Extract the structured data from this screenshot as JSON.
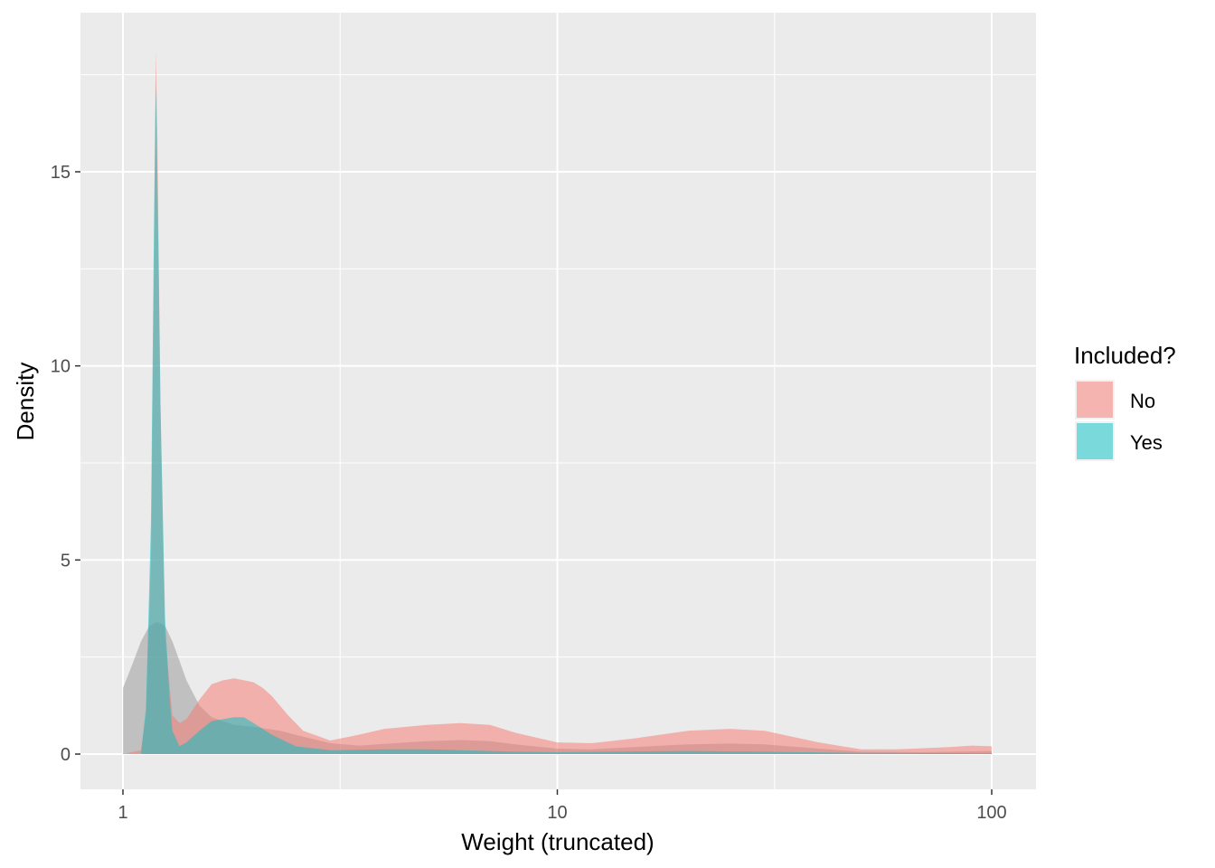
{
  "chart_data": {
    "type": "area",
    "xlabel": "Weight (truncated)",
    "ylabel": "Density",
    "x_scale": "log10",
    "xlim": [
      1,
      100
    ],
    "ylim": [
      -0.9,
      19
    ],
    "x_ticks": [
      1,
      10,
      100
    ],
    "x_tick_labels": [
      "1",
      "10",
      "100"
    ],
    "y_ticks": [
      0,
      5,
      10,
      15
    ],
    "y_tick_labels": [
      "0",
      "5",
      "10",
      "15"
    ],
    "grid": true,
    "legend": {
      "title": "Included?",
      "position": "right"
    },
    "series": [
      {
        "name": "No",
        "color": "#F8766D",
        "opacity": 0.5,
        "points": [
          [
            1.0,
            0
          ],
          [
            1.1,
            0.1
          ],
          [
            1.13,
            1.0
          ],
          [
            1.16,
            5
          ],
          [
            1.18,
            13
          ],
          [
            1.19,
            18.1
          ],
          [
            1.2,
            16
          ],
          [
            1.22,
            9
          ],
          [
            1.25,
            3
          ],
          [
            1.3,
            1.0
          ],
          [
            1.35,
            0.8
          ],
          [
            1.4,
            0.9
          ],
          [
            1.5,
            1.4
          ],
          [
            1.6,
            1.8
          ],
          [
            1.7,
            1.9
          ],
          [
            1.8,
            1.95
          ],
          [
            1.9,
            1.9
          ],
          [
            2.0,
            1.85
          ],
          [
            2.1,
            1.7
          ],
          [
            2.2,
            1.5
          ],
          [
            2.4,
            1.0
          ],
          [
            2.6,
            0.6
          ],
          [
            3.0,
            0.35
          ],
          [
            3.5,
            0.5
          ],
          [
            4.0,
            0.65
          ],
          [
            5.0,
            0.75
          ],
          [
            6.0,
            0.8
          ],
          [
            7.0,
            0.75
          ],
          [
            8.0,
            0.55
          ],
          [
            10.0,
            0.3
          ],
          [
            12.0,
            0.28
          ],
          [
            15.0,
            0.4
          ],
          [
            20.0,
            0.6
          ],
          [
            25.0,
            0.65
          ],
          [
            30.0,
            0.6
          ],
          [
            40.0,
            0.3
          ],
          [
            50.0,
            0.12
          ],
          [
            60.0,
            0.12
          ],
          [
            80.0,
            0.18
          ],
          [
            90.0,
            0.22
          ],
          [
            100.0,
            0.2
          ]
        ]
      },
      {
        "name": "Yes",
        "color": "#00BFC4",
        "opacity": 0.5,
        "points": [
          [
            1.0,
            0
          ],
          [
            1.1,
            0
          ],
          [
            1.13,
            1.2
          ],
          [
            1.16,
            6
          ],
          [
            1.18,
            14
          ],
          [
            1.19,
            17.3
          ],
          [
            1.2,
            15
          ],
          [
            1.22,
            9
          ],
          [
            1.25,
            3.5
          ],
          [
            1.28,
            1.5
          ],
          [
            1.3,
            0.6
          ],
          [
            1.35,
            0.2
          ],
          [
            1.4,
            0.3
          ],
          [
            1.5,
            0.6
          ],
          [
            1.6,
            0.85
          ],
          [
            1.7,
            0.9
          ],
          [
            1.8,
            0.95
          ],
          [
            1.9,
            0.95
          ],
          [
            2.0,
            0.8
          ],
          [
            2.2,
            0.5
          ],
          [
            2.5,
            0.2
          ],
          [
            3.0,
            0.1
          ],
          [
            4.0,
            0.12
          ],
          [
            5.0,
            0.12
          ],
          [
            6.0,
            0.1
          ],
          [
            8.0,
            0.06
          ],
          [
            10.0,
            0.05
          ],
          [
            20.0,
            0.08
          ],
          [
            30.0,
            0.06
          ],
          [
            50.0,
            0.03
          ],
          [
            100.0,
            0.02
          ]
        ]
      },
      {
        "name": "",
        "color": "#808080",
        "opacity": 0.4,
        "points": [
          [
            1.0,
            1.7
          ],
          [
            1.05,
            2.3
          ],
          [
            1.1,
            2.9
          ],
          [
            1.15,
            3.3
          ],
          [
            1.2,
            3.4
          ],
          [
            1.25,
            3.3
          ],
          [
            1.3,
            2.9
          ],
          [
            1.35,
            2.4
          ],
          [
            1.4,
            1.9
          ],
          [
            1.5,
            1.25
          ],
          [
            1.6,
            0.95
          ],
          [
            1.8,
            0.75
          ],
          [
            2.0,
            0.7
          ],
          [
            2.3,
            0.6
          ],
          [
            2.6,
            0.45
          ],
          [
            3.0,
            0.28
          ],
          [
            3.5,
            0.22
          ],
          [
            4.0,
            0.26
          ],
          [
            5.0,
            0.33
          ],
          [
            6.0,
            0.36
          ],
          [
            7.0,
            0.33
          ],
          [
            8.0,
            0.25
          ],
          [
            10.0,
            0.14
          ],
          [
            12.0,
            0.12
          ],
          [
            15.0,
            0.18
          ],
          [
            20.0,
            0.25
          ],
          [
            25.0,
            0.27
          ],
          [
            30.0,
            0.25
          ],
          [
            40.0,
            0.14
          ],
          [
            50.0,
            0.06
          ],
          [
            70.0,
            0.05
          ],
          [
            100.0,
            0.08
          ]
        ]
      }
    ]
  }
}
